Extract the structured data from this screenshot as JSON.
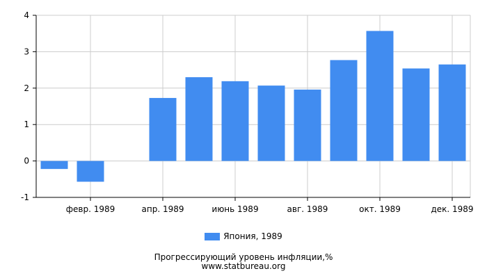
{
  "chart_data": {
    "type": "bar",
    "categories": [
      "янв. 1989",
      "февр. 1989",
      "март 1989",
      "апр. 1989",
      "май 1989",
      "июнь 1989",
      "июль 1989",
      "авг. 1989",
      "сент. 1989",
      "окт. 1989",
      "нояб. 1989",
      "дек. 1989"
    ],
    "tick_labels": [
      "февр. 1989",
      "апр. 1989",
      "июнь 1989",
      "авг. 1989",
      "окт. 1989",
      "дек. 1989"
    ],
    "series": [
      {
        "name": "Япония, 1989",
        "values": [
          -0.22,
          -0.57,
          0.0,
          1.73,
          2.3,
          2.19,
          2.07,
          1.96,
          2.77,
          3.57,
          2.54,
          2.65
        ]
      }
    ],
    "yticks": [
      -1,
      0,
      1,
      2,
      3,
      4
    ],
    "ylim": [
      -1,
      4
    ],
    "grid": true,
    "legend_position": "bottom",
    "bar_color": "#418cf0"
  },
  "caption": {
    "title": "Прогрессирующий уровень инфляции,%",
    "site": "www.statbureau.org"
  }
}
